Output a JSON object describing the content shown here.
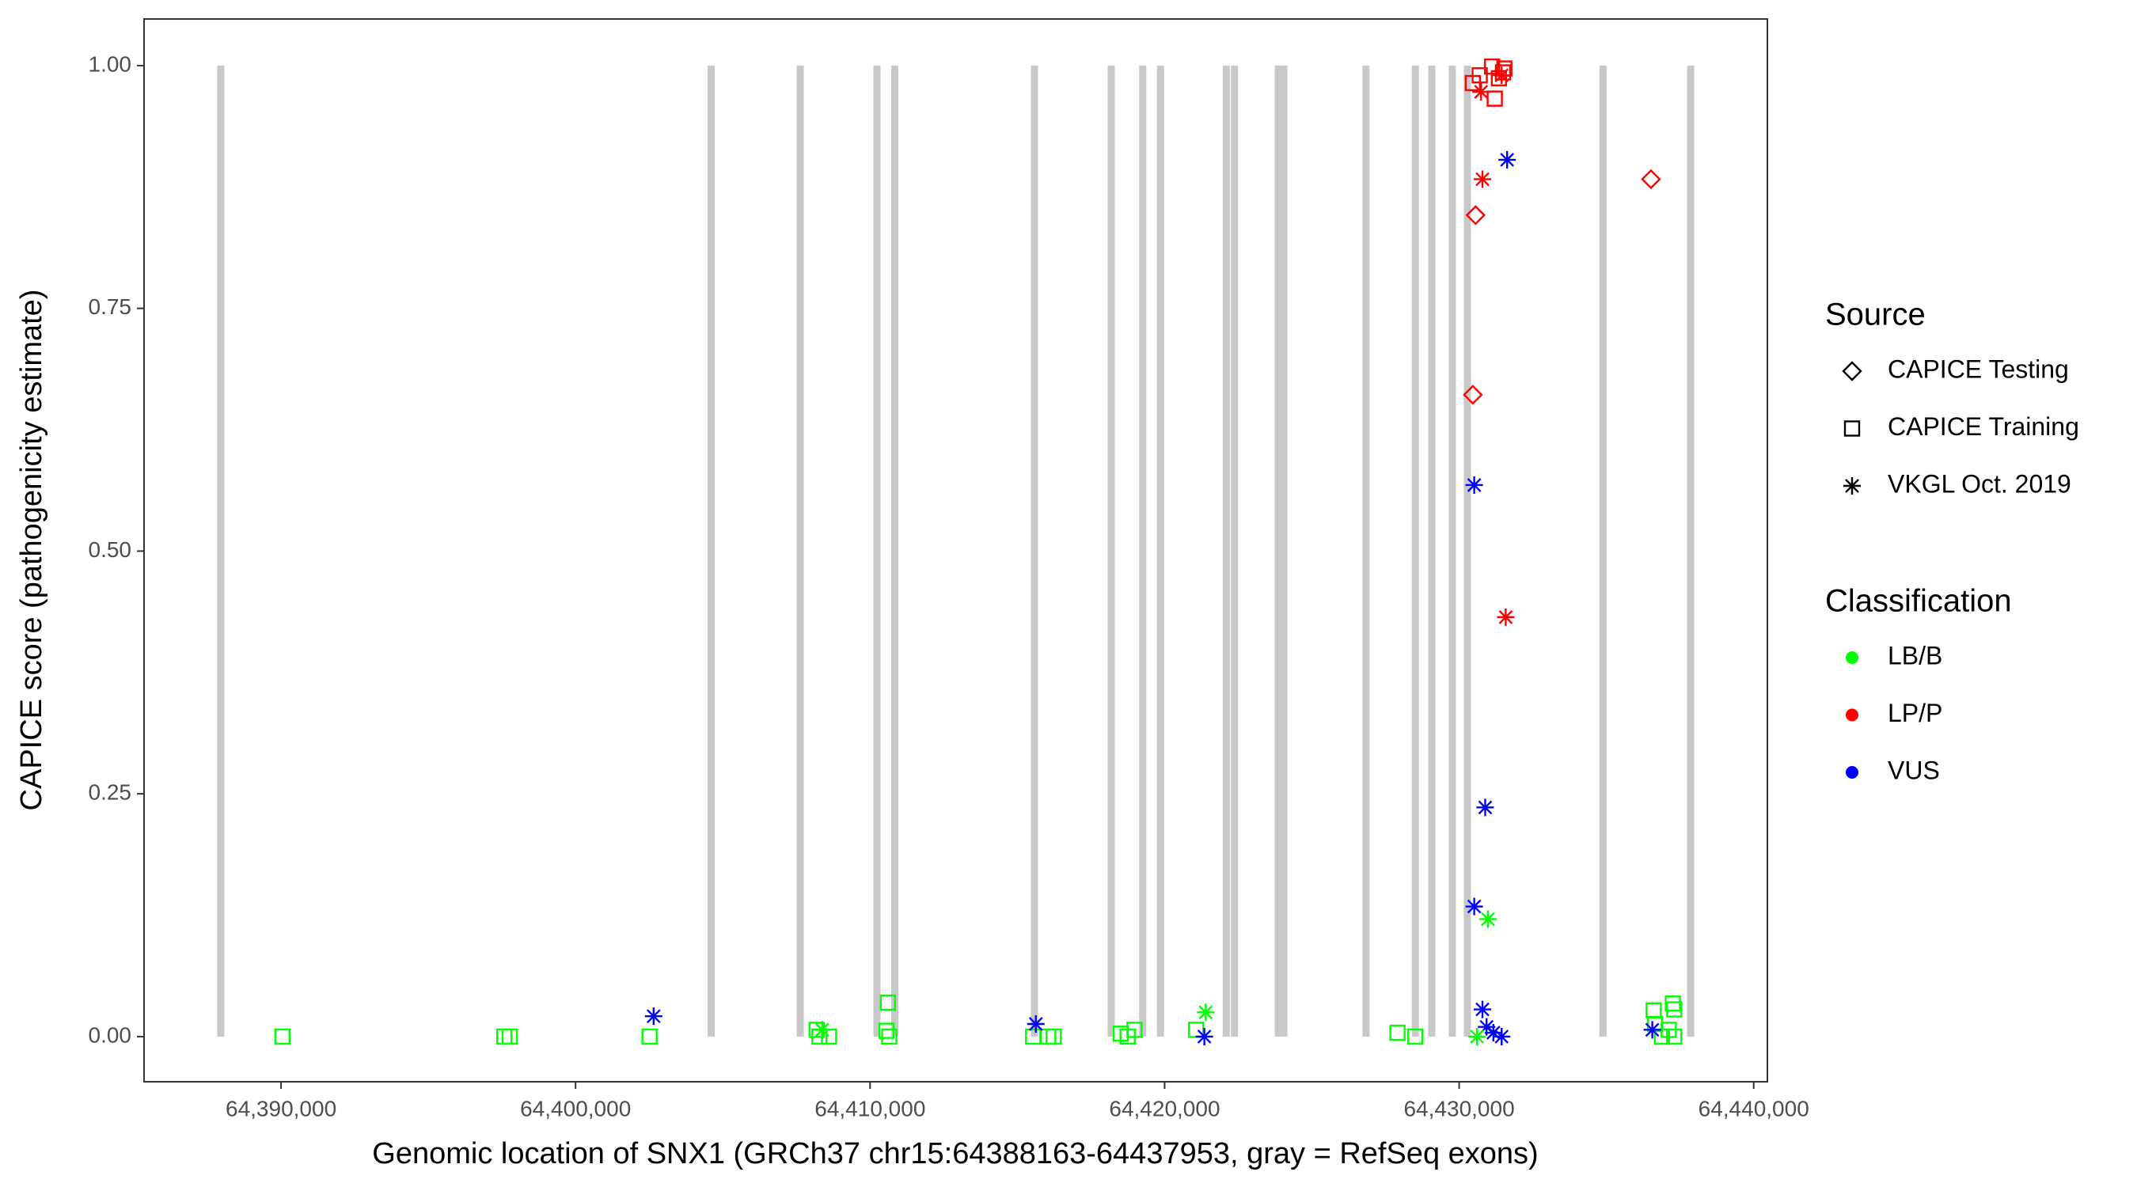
{
  "chart_data": {
    "type": "scatter",
    "x_label": "Genomic location of SNX1 (GRCh37 chr15:64388163-64437953, gray = RefSeq exons)",
    "y_label": "CAPICE score (pathogenicity estimate)",
    "xlim": [
      64385349,
      64440465
    ],
    "ylim": [
      -0.0465,
      1.048
    ],
    "xticks": [
      {
        "value": 64390000,
        "label": "64,390,000"
      },
      {
        "value": 64400000,
        "label": "64,400,000"
      },
      {
        "value": 64410000,
        "label": "64,410,000"
      },
      {
        "value": 64420000,
        "label": "64,420,000"
      },
      {
        "value": 64430000,
        "label": "64,430,000"
      },
      {
        "value": 64440000,
        "label": "64,440,000"
      }
    ],
    "yticks": [
      {
        "value": 0,
        "label": "0.00"
      },
      {
        "value": 0.25,
        "label": "0.25"
      },
      {
        "value": 0.5,
        "label": "0.50"
      },
      {
        "value": 0.75,
        "label": "0.75"
      },
      {
        "value": 1,
        "label": "1.00"
      }
    ],
    "exon_color": "#c8c8c8",
    "exons": [
      64387953,
      64404605,
      64407628,
      64410233,
      64410837,
      64415581,
      64418186,
      64419256,
      64419860,
      64422093,
      64422372,
      64423860,
      64424047,
      64426837,
      64428512,
      64429070,
      64429767,
      64430279,
      64434884,
      64437860
    ],
    "legend": {
      "source": {
        "title": "Source",
        "items": [
          {
            "label": "CAPICE Testing",
            "shape": "diamond"
          },
          {
            "label": "CAPICE Training",
            "shape": "square"
          },
          {
            "label": "VKGL Oct. 2019",
            "shape": "star"
          }
        ]
      },
      "classification": {
        "title": "Classification",
        "items": [
          {
            "label": "LB/B",
            "color": "#00ff00"
          },
          {
            "label": "LP/P",
            "color": "#ff0000"
          },
          {
            "label": "VUS",
            "color": "#0000ff"
          }
        ]
      }
    },
    "series": [
      {
        "shape": "diamond",
        "color": "#ff0000",
        "x": [
          64430558,
          64430465,
          64436512
        ],
        "y": [
          0.846,
          0.661,
          0.883
        ]
      },
      {
        "shape": "square",
        "color": "#ff0000",
        "x": [
          64430465,
          64430698,
          64431116,
          64431209,
          64431349,
          64431488,
          64431535
        ],
        "y": [
          0.982,
          0.99,
          0.999,
          0.966,
          0.987,
          0.993,
          0.997
        ]
      },
      {
        "shape": "square",
        "color": "#00ff00",
        "x": [
          64390047,
          64397581,
          64397767,
          64402512,
          64408186,
          64408279,
          64408605,
          64410605,
          64410558,
          64410651,
          64415535,
          64416047,
          64416233,
          64418512,
          64418744,
          64418977,
          64421070,
          64427907,
          64428512,
          64436605,
          64436651,
          64437256,
          64437302,
          64437116,
          64437302,
          64436884
        ],
        "y": [
          0,
          0,
          0,
          0,
          0.007,
          0,
          0,
          0.035,
          0.006,
          0,
          0,
          0,
          0,
          0.003,
          0,
          0.007,
          0.007,
          0.004,
          0,
          0.027,
          0.013,
          0.034,
          0.028,
          0.007,
          0,
          0
        ]
      },
      {
        "shape": "star",
        "color": "#ff0000",
        "x": [
          64430744,
          64430791,
          64431581,
          64431442
        ],
        "y": [
          0.973,
          0.883,
          0.432,
          0.99
        ]
      },
      {
        "shape": "star",
        "color": "#0000ff",
        "x": [
          64402651,
          64415628,
          64421349,
          64431628,
          64430512,
          64430884,
          64430512,
          64430791,
          64430930,
          64431163,
          64431442,
          64436558
        ],
        "y": [
          0.021,
          0.013,
          0,
          0.903,
          0.568,
          0.236,
          0.134,
          0.028,
          0.01,
          0.004,
          0,
          0.007
        ]
      },
      {
        "shape": "star",
        "color": "#00ff00",
        "x": [
          64421395,
          64430977,
          64430605,
          64408372
        ],
        "y": [
          0.025,
          0.121,
          0,
          0.007
        ]
      }
    ]
  }
}
